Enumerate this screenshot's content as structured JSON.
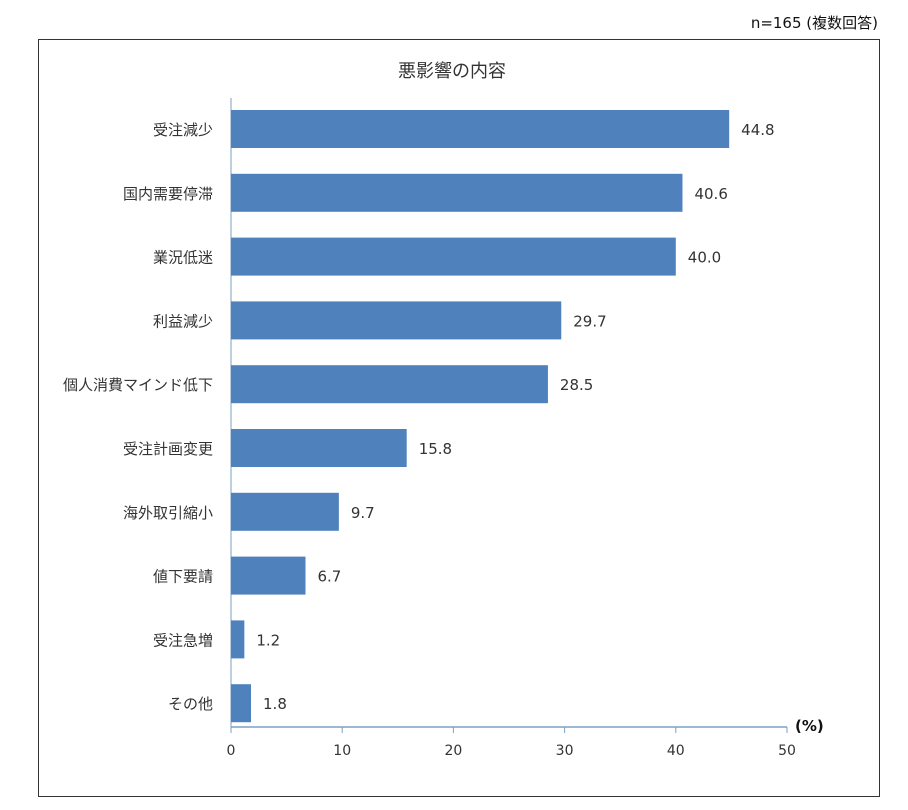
{
  "note": "n=165 (複数回答)",
  "chart_data": {
    "type": "bar",
    "orientation": "horizontal",
    "title": "悪影響の内容",
    "unit_label": "(%)",
    "categories": [
      "受注減少",
      "国内需要停滞",
      "業況低迷",
      "利益減少",
      "個人消費マインド低下",
      "受注計画変更",
      "海外取引縮小",
      "値下要請",
      "受注急増",
      "その他"
    ],
    "values": [
      44.8,
      40.6,
      40.0,
      29.7,
      28.5,
      15.8,
      9.7,
      6.7,
      1.2,
      1.8
    ],
    "value_labels": [
      "44.8",
      "40.6",
      "40.0",
      "29.7",
      "28.5",
      "15.8",
      "9.7",
      "6.7",
      "1.2",
      "1.8"
    ],
    "xlim": [
      0,
      50
    ],
    "xticks": [
      "0",
      "10",
      "20",
      "30",
      "40",
      "50"
    ],
    "bar_color": "#4f81bd",
    "axis_color": "#7f9fc4",
    "grid": false
  }
}
